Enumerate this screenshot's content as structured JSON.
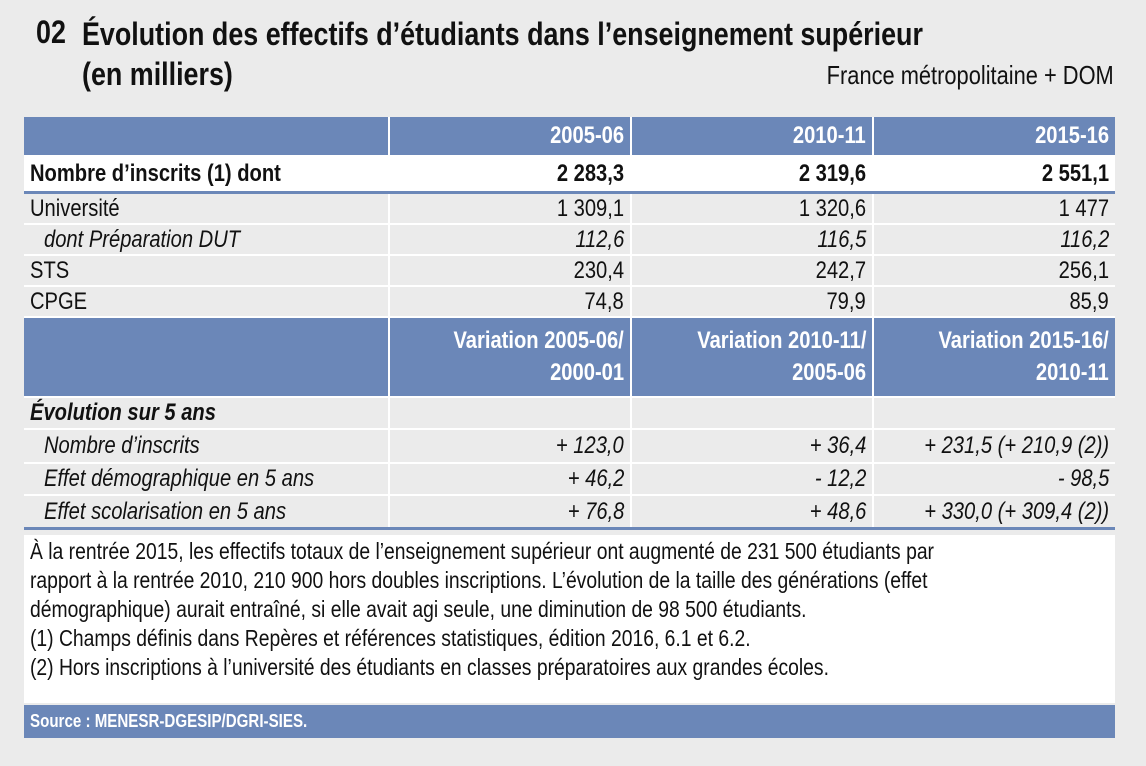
{
  "header": {
    "number": "02",
    "title_line1": "Évolution des effectifs d’étudiants dans l’enseignement supérieur",
    "title_line2": "(en milliers)",
    "scope": "France métropolitaine + DOM"
  },
  "table": {
    "columns": [
      "2005-06",
      "2010-11",
      "2015-16"
    ],
    "rows": [
      {
        "label": "Nombre d’inscrits (1) dont",
        "values": [
          "2 283,3",
          "2 319,6",
          "2 551,1"
        ]
      },
      {
        "label": "Université",
        "values": [
          "1 309,1",
          "1 320,6",
          "1 477"
        ]
      },
      {
        "label": "dont Préparation DUT",
        "values": [
          "112,6",
          "116,5",
          "116,2"
        ]
      },
      {
        "label": "STS",
        "values": [
          "230,4",
          "242,7",
          "256,1"
        ]
      },
      {
        "label": "CPGE",
        "values": [
          "74,8",
          "79,9",
          "85,9"
        ]
      }
    ],
    "variation_columns": [
      {
        "line1": "Variation 2005-06/",
        "line2": "2000-01"
      },
      {
        "line1": "Variation 2010-11/",
        "line2": "2005-06"
      },
      {
        "line1": "Variation 2015-16/",
        "line2": "2010-11"
      }
    ],
    "section_label": "Évolution sur 5 ans",
    "variation_rows": [
      {
        "label": "Nombre d’inscrits",
        "values": [
          "+ 123,0",
          "+ 36,4",
          "+ 231,5 (+ 210,9 (2))"
        ]
      },
      {
        "label": "Effet démographique en 5 ans",
        "values": [
          "+ 46,2",
          "- 12,2",
          "- 98,5"
        ]
      },
      {
        "label": "Effet scolarisation en 5 ans",
        "values": [
          "+ 76,8",
          "+ 48,6",
          "+ 330,0 (+ 309,4 (2))"
        ]
      }
    ]
  },
  "notes": [
    "À la rentrée 2015, les effectifs totaux de l’enseignement supérieur ont augmenté de 231 500 étudiants par",
    "rapport à la rentrée 2010, 210 900 hors doubles inscriptions. L’évolution de la taille des générations (effet",
    "démographique) aurait entraîné, si elle avait agi seule, une diminution de 98 500 étudiants.",
    "(1) Champs définis dans Repères et références statistiques, édition 2016, 6.1 et 6.2.",
    "(2) Hors inscriptions à l’université des étudiants en classes préparatoires aux grandes écoles."
  ],
  "source": "Source : MENESR-DGESIP/DGRI-SIES."
}
